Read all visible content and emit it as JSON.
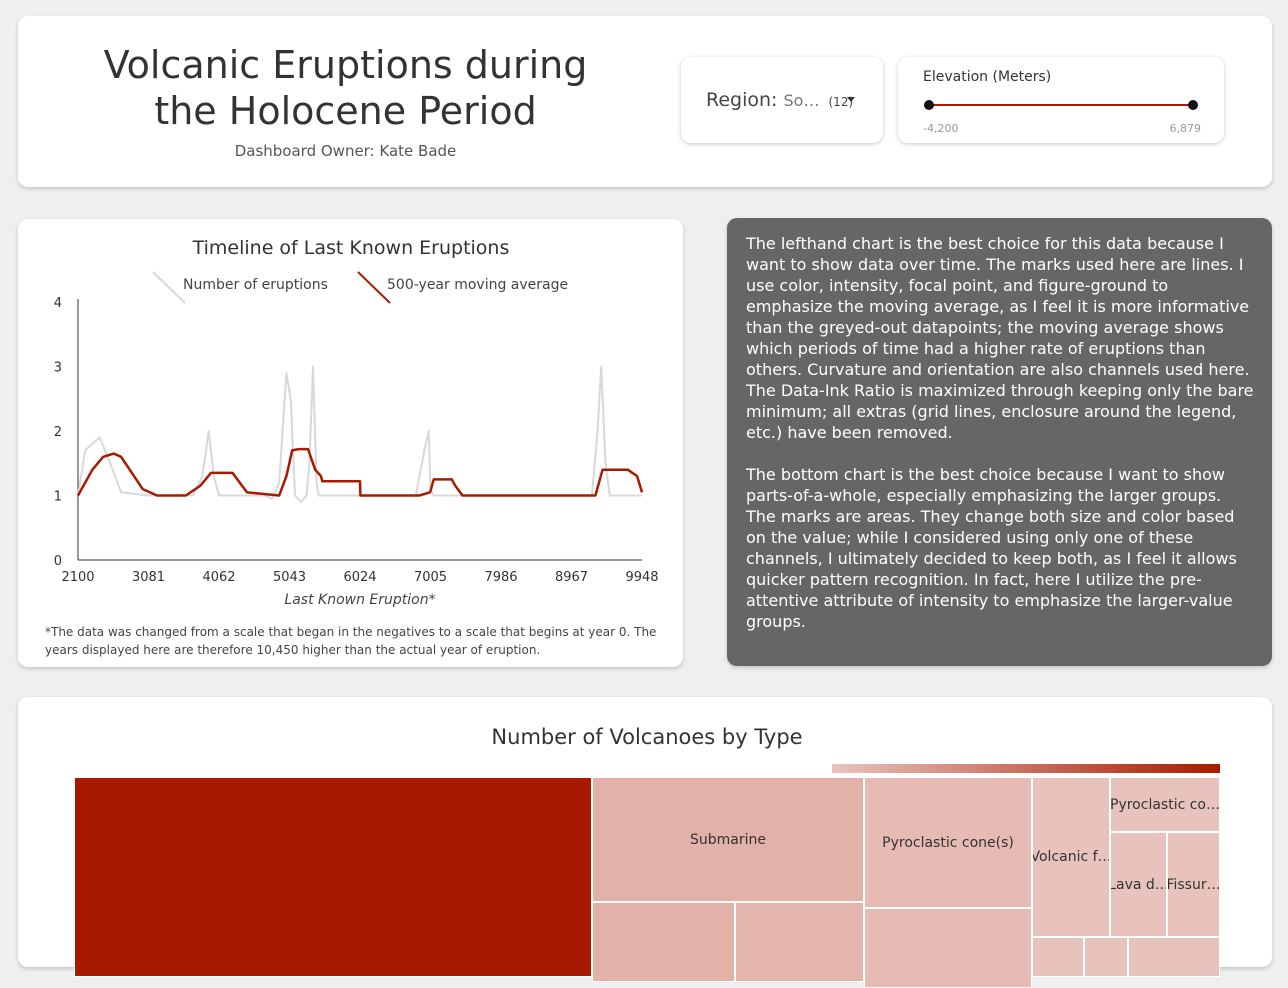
{
  "header": {
    "title": "Volcanic Eruptions during the Holocene Period",
    "owner": "Dashboard Owner: Kate Bade"
  },
  "region_filter": {
    "label": "Region:",
    "value": "So…",
    "count": "(12)"
  },
  "elevation_filter": {
    "label": "Elevation (Meters)",
    "min": "-4,200",
    "max": "6,879"
  },
  "chart_data": [
    {
      "type": "line",
      "title": "Timeline of Last Known Eruptions",
      "xlabel": "Last Known Eruption*",
      "ylabel": "",
      "x_ticks": [
        "2100",
        "3081",
        "4062",
        "5043",
        "6024",
        "7005",
        "7986",
        "8967",
        "9948"
      ],
      "y_ticks": [
        "0",
        "1",
        "2",
        "3",
        "4"
      ],
      "xlim": [
        2100,
        9948
      ],
      "ylim": [
        0,
        4
      ],
      "grid": false,
      "legend": "top",
      "series": [
        {
          "name": "Number of eruptions",
          "color": "#d8d8d8",
          "points": [
            [
              2100,
              1
            ],
            [
              2200,
              1.7
            ],
            [
              2400,
              1.9
            ],
            [
              2550,
              1.5
            ],
            [
              2700,
              1.05
            ],
            [
              3081,
              1
            ],
            [
              3400,
              1
            ],
            [
              3700,
              1
            ],
            [
              3830,
              1.3
            ],
            [
              3920,
              2
            ],
            [
              3990,
              1.3
            ],
            [
              4062,
              1
            ],
            [
              4500,
              1
            ],
            [
              4700,
              1
            ],
            [
              4800,
              0.95
            ],
            [
              4900,
              1.2
            ],
            [
              5000,
              2.9
            ],
            [
              5060,
              2.5
            ],
            [
              5120,
              1
            ],
            [
              5200,
              0.9
            ],
            [
              5280,
              1
            ],
            [
              5320,
              1.5
            ],
            [
              5370,
              3
            ],
            [
              5420,
              1.2
            ],
            [
              5450,
              1
            ],
            [
              6024,
              1
            ],
            [
              6800,
              1
            ],
            [
              6920,
              1.7
            ],
            [
              6980,
              2
            ],
            [
              7005,
              1.1
            ],
            [
              7050,
              1
            ],
            [
              7986,
              1
            ],
            [
              8967,
              1
            ],
            [
              9250,
              1
            ],
            [
              9330,
              2
            ],
            [
              9380,
              3
            ],
            [
              9440,
              1.5
            ],
            [
              9500,
              1
            ],
            [
              9948,
              1
            ]
          ]
        },
        {
          "name": "500-year moving average",
          "color": "#a81a00",
          "points": [
            [
              2100,
              1
            ],
            [
              2300,
              1.4
            ],
            [
              2450,
              1.6
            ],
            [
              2600,
              1.65
            ],
            [
              2700,
              1.6
            ],
            [
              2850,
              1.35
            ],
            [
              3000,
              1.1
            ],
            [
              3200,
              1
            ],
            [
              3600,
              1
            ],
            [
              3800,
              1.15
            ],
            [
              3950,
              1.35
            ],
            [
              4062,
              1.35
            ],
            [
              4250,
              1.35
            ],
            [
              4450,
              1.05
            ],
            [
              4900,
              1
            ],
            [
              5000,
              1.3
            ],
            [
              5080,
              1.7
            ],
            [
              5170,
              1.72
            ],
            [
              5300,
              1.72
            ],
            [
              5400,
              1.4
            ],
            [
              5480,
              1.3
            ],
            [
              5500,
              1.22
            ],
            [
              6024,
              1.22
            ],
            [
              6030,
              1
            ],
            [
              6850,
              1
            ],
            [
              7000,
              1.05
            ],
            [
              7050,
              1.25
            ],
            [
              7300,
              1.25
            ],
            [
              7350,
              1.15
            ],
            [
              7450,
              1
            ],
            [
              8967,
              1
            ],
            [
              9300,
              1
            ],
            [
              9400,
              1.4
            ],
            [
              9750,
              1.4
            ],
            [
              9880,
              1.3
            ],
            [
              9948,
              1.05
            ]
          ]
        }
      ]
    },
    {
      "type": "treemap",
      "title": "Number of Volcanoes by Type",
      "legend": "color gradient top-right",
      "items": [
        {
          "label": "",
          "color": "#a81a00"
        },
        {
          "label": "Submarine",
          "color": "#e2b1a8"
        },
        {
          "label": "Pyroclastic cone(s)",
          "color": "#e6bbb4"
        },
        {
          "label": "Volcanic f…",
          "color": "#e8c3bd"
        },
        {
          "label": "Pyroclastic co…",
          "color": "#e8c3bd"
        },
        {
          "label": "Lava d…",
          "color": "#e8c3bd"
        },
        {
          "label": "Fissur…",
          "color": "#e8c3bd"
        },
        {
          "label": "",
          "color": "#e2b1a8"
        },
        {
          "label": "",
          "color": "#e4b5ad"
        },
        {
          "label": "",
          "color": "#e6bbb4"
        },
        {
          "label": "",
          "color": "#e8c3bd"
        },
        {
          "label": "",
          "color": "#e8c3bd"
        },
        {
          "label": "",
          "color": "#e8c3bd"
        }
      ]
    }
  ],
  "footnote": "*The data was changed from a scale that began in the negatives to a scale that begins at year 0. The years displayed here are therefore 10,450 higher than the actual year of eruption.",
  "description": {
    "p1": "The lefthand chart is the best choice for this data because I want to show data over time. The marks used here are lines. I use color, intensity, focal point, and figure-ground to emphasize the moving average, as I feel it is more informative than the greyed-out datapoints; the moving average shows which periods of time had a higher rate of eruptions than others. Curvature and orientation are also channels used here. The Data-Ink Ratio is maximized through keeping only the bare minimum; all extras (grid lines, enclosure around the legend, etc.) have been removed.",
    "p2": "The bottom chart is the best choice because I want to show parts-of-a-whole, especially emphasizing the larger groups. The marks are areas. They change both size and color based on the value; while I considered using only one of these channels, I ultimately decided to keep both, as I feel it allows quicker pattern recognition. In fact, here I utilize the pre-attentive attribute of intensity to emphasize the larger-value groups."
  }
}
